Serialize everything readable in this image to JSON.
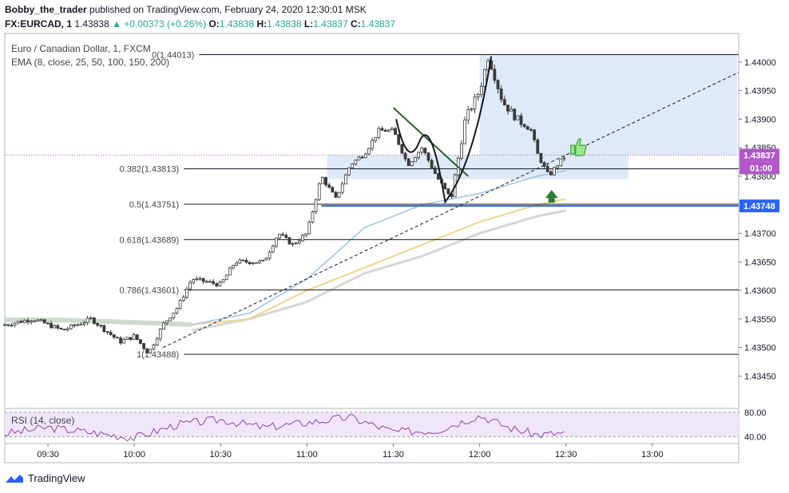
{
  "header": {
    "line1_author": "Bobby_the_trader",
    "line1_rest": " published on TradingView.com, February 24, 2020 12:30:01 MSK",
    "symbol": "FX:EURCAD, 1",
    "last": "1.43838",
    "change": "+0.00373 (+0.26%)",
    "o_label": "O:",
    "o": "1.43838",
    "h_label": "H:",
    "h": "1.43838",
    "l_label": "L:",
    "l": "1.43837",
    "c_label": "C:",
    "c": "1.43837"
  },
  "legend": {
    "title": "Euro / Canadian Dollar, 1, FXCM",
    "ema": "EMA (8, close, 25, 50, 100, 150, 200)",
    "rsi": "RSI (14, close)"
  },
  "footer": {
    "brand": "TradingView"
  },
  "colors": {
    "up": "#26a69a",
    "candle": "#3a3a3a",
    "ema_blue": "#9ec4ea",
    "ema_yellow": "#f1d48c",
    "ema_grey": "#d6d6d6",
    "ema_flat": "#c9d6c9",
    "fib_zone": "#dbe7f7",
    "rsi_band": "#f0e6fa",
    "rsi_line": "#8e44ad",
    "price_tag": "#b058c8",
    "level_tag": "#2962ff"
  },
  "chart_data": {
    "type": "candlestick",
    "xlim": [
      "09:15",
      "13:30"
    ],
    "ylim": [
      1.4341,
      1.4405
    ],
    "x_ticks": [
      "09:30",
      "10:00",
      "10:30",
      "11:00",
      "11:30",
      "12:00",
      "12:30",
      "13:00"
    ],
    "y_ticks": [
      "1.44000",
      "1.43950",
      "1.43900",
      "1.43850",
      "1.43800",
      "1.43700",
      "1.43650",
      "1.43600",
      "1.43550",
      "1.43500",
      "1.43450"
    ],
    "current_price": {
      "value": 1.43837,
      "label": "1.43837",
      "countdown": "01:00"
    },
    "level_tag": {
      "value": 1.43748,
      "label": "1.43748"
    },
    "fib_levels": [
      {
        "label": "0(1.44013)",
        "value": 1.44013
      },
      {
        "label": "0.382(1.43813)",
        "value": 1.43813
      },
      {
        "label": "0.5(1.43751)",
        "value": 1.43751
      },
      {
        "label": "0.618(1.43689)",
        "value": 1.43689
      },
      {
        "label": "0.786(1.43601)",
        "value": 1.43601
      },
      {
        "label": "1(1.43488)",
        "value": 1.43488
      }
    ],
    "price_path": [
      [
        "09:15",
        1.4354
      ],
      [
        "09:25",
        1.4355
      ],
      [
        "09:35",
        1.4353
      ],
      [
        "09:45",
        1.4355
      ],
      [
        "09:55",
        1.4351
      ],
      [
        "10:00",
        1.4352
      ],
      [
        "10:05",
        1.4349
      ],
      [
        "10:10",
        1.4354
      ],
      [
        "10:15",
        1.4357
      ],
      [
        "10:20",
        1.4362
      ],
      [
        "10:30",
        1.4361
      ],
      [
        "10:35",
        1.4365
      ],
      [
        "10:40",
        1.4365
      ],
      [
        "10:45",
        1.4365
      ],
      [
        "10:50",
        1.437
      ],
      [
        "10:55",
        1.4368
      ],
      [
        "11:00",
        1.437
      ],
      [
        "11:05",
        1.438
      ],
      [
        "11:10",
        1.4376
      ],
      [
        "11:15",
        1.4382
      ],
      [
        "11:20",
        1.4384
      ],
      [
        "11:25",
        1.4388
      ],
      [
        "11:30",
        1.4388
      ],
      [
        "11:35",
        1.4382
      ],
      [
        "11:40",
        1.4385
      ],
      [
        "11:45",
        1.438
      ],
      [
        "11:50",
        1.4376
      ],
      [
        "11:55",
        1.439
      ],
      [
        "12:00",
        1.4395
      ],
      [
        "12:03",
        1.4401
      ],
      [
        "12:08",
        1.4393
      ],
      [
        "12:13",
        1.439
      ],
      [
        "12:18",
        1.4388
      ],
      [
        "12:20",
        1.4384
      ],
      [
        "12:24",
        1.438
      ],
      [
        "12:27",
        1.4382
      ],
      [
        "12:30",
        1.43837
      ]
    ],
    "ema_blue": [
      [
        "10:20",
        1.4354
      ],
      [
        "10:40",
        1.4356
      ],
      [
        "11:00",
        1.4362
      ],
      [
        "11:20",
        1.4371
      ],
      [
        "11:40",
        1.4375
      ],
      [
        "12:00",
        1.4377
      ],
      [
        "12:20",
        1.438
      ],
      [
        "12:30",
        1.4381
      ]
    ],
    "ema_yellow": [
      [
        "10:20",
        1.4354
      ],
      [
        "10:40",
        1.4355
      ],
      [
        "11:00",
        1.436
      ],
      [
        "11:20",
        1.4364
      ],
      [
        "11:40",
        1.4368
      ],
      [
        "12:00",
        1.4372
      ],
      [
        "12:20",
        1.4375
      ],
      [
        "12:30",
        1.4376
      ]
    ],
    "ema_grey": [
      [
        "10:20",
        1.4353
      ],
      [
        "10:40",
        1.4355
      ],
      [
        "11:00",
        1.4358
      ],
      [
        "11:20",
        1.4363
      ],
      [
        "11:40",
        1.4366
      ],
      [
        "12:00",
        1.437
      ],
      [
        "12:20",
        1.4373
      ],
      [
        "12:30",
        1.4374
      ]
    ],
    "rsi": {
      "ylim": [
        30,
        85
      ],
      "levels": [
        "80.00",
        "40.00"
      ],
      "values": [
        [
          "09:15",
          45
        ],
        [
          "09:30",
          55
        ],
        [
          "09:45",
          47
        ],
        [
          "10:00",
          38
        ],
        [
          "10:15",
          60
        ],
        [
          "10:30",
          68
        ],
        [
          "10:45",
          55
        ],
        [
          "11:00",
          63
        ],
        [
          "11:15",
          72
        ],
        [
          "11:30",
          48
        ],
        [
          "11:45",
          50
        ],
        [
          "12:00",
          75
        ],
        [
          "12:10",
          55
        ],
        [
          "12:20",
          43
        ],
        [
          "12:30",
          46
        ]
      ]
    }
  }
}
